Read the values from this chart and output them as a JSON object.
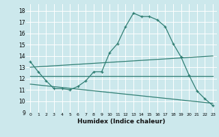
{
  "title": "",
  "xlabel": "Humidex (Indice chaleur)",
  "bg_color": "#cce8ec",
  "line_color": "#2e7d72",
  "grid_color": "#ffffff",
  "xlim": [
    -0.5,
    23.5
  ],
  "ylim": [
    9,
    18.6
  ],
  "yticks": [
    9,
    10,
    11,
    12,
    13,
    14,
    15,
    16,
    17,
    18
  ],
  "xticks": [
    0,
    1,
    2,
    3,
    4,
    5,
    6,
    7,
    8,
    9,
    10,
    11,
    12,
    13,
    14,
    15,
    16,
    17,
    18,
    19,
    20,
    21,
    22,
    23
  ],
  "line1_x": [
    0,
    1,
    2,
    3,
    4,
    5,
    6,
    7,
    8,
    9,
    10,
    11,
    12,
    13,
    14,
    15,
    16,
    17,
    18,
    19,
    20,
    21,
    22,
    23
  ],
  "line1_y": [
    13.5,
    12.6,
    11.8,
    11.1,
    11.1,
    11.0,
    11.3,
    11.8,
    12.6,
    12.6,
    14.3,
    15.1,
    16.6,
    17.8,
    17.5,
    17.5,
    17.2,
    16.6,
    15.1,
    13.9,
    12.3,
    10.9,
    10.2,
    9.6
  ],
  "line2_x": [
    0,
    23
  ],
  "line2_y": [
    13.0,
    14.0
  ],
  "line3_x": [
    0,
    23
  ],
  "line3_y": [
    12.2,
    12.2
  ],
  "line4_x": [
    0,
    23
  ],
  "line4_y": [
    11.5,
    9.8
  ]
}
